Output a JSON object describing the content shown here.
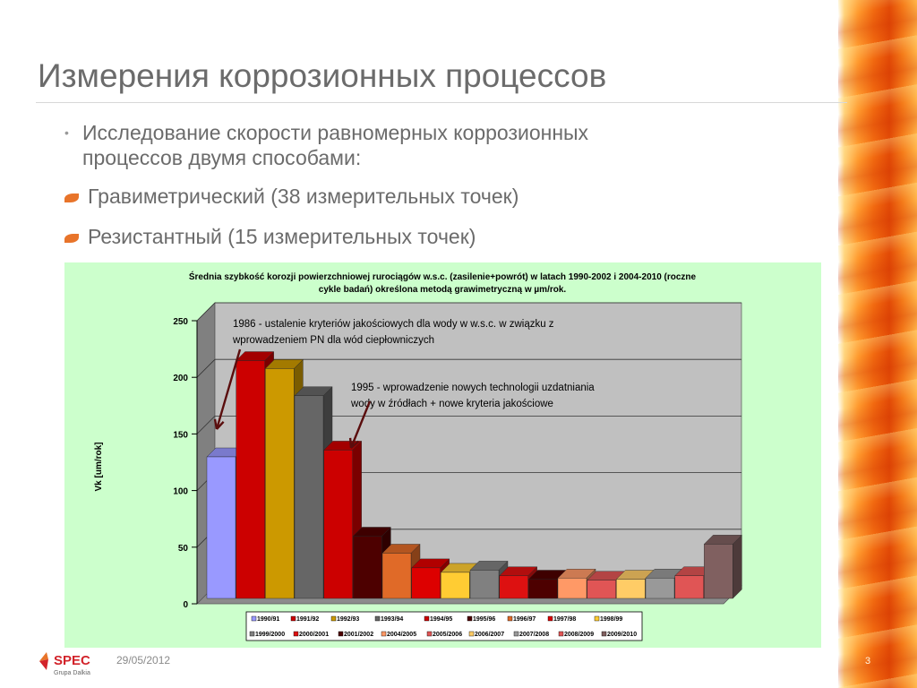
{
  "slide": {
    "title": "Измерения коррозионных процессов",
    "bullet_main": "Исследование скорости равномерных коррозионных процессов двумя способами:",
    "bullet_1": "Гравиметрический (38 измерительных точек)",
    "bullet_2": "Резистантный (15 измерительных точек)",
    "date": "29/05/2012",
    "page_number": "3",
    "logo_text": "SPEC",
    "logo_subtext": "Grupa Dalkia"
  },
  "colors": {
    "text": "#6b6b6b",
    "chart_bg": "#ccffcc",
    "plot_wall": "#c0c0c0",
    "bullet_leaf": "#e8742a"
  },
  "chart_data": {
    "type": "bar",
    "title_line1": "Średnia szybkość korozji powierzchniowej rurociągów w.s.c. (zasilenie+powrót) w latach 1990-2002 i 2004-2010 (roczne",
    "title_line2": "cykle badań) określona metodą grawimetryczną w µm/rok.",
    "ylabel": "Vk [um/rok]",
    "ylim": [
      0,
      250
    ],
    "yticks": [
      "0",
      "50",
      "100",
      "150",
      "200",
      "250"
    ],
    "grid": true,
    "legend_position": "bottom",
    "categories": [
      "1990/91",
      "1991/92",
      "1992/93",
      "1993/94",
      "1994/95",
      "1995/96",
      "1996/97",
      "1997/98",
      "1998/99",
      "1999/2000",
      "2000/2001",
      "2001/2002",
      "2004/2005",
      "2005/2006",
      "2006/2007",
      "2007/2008",
      "2008/2009",
      "2009/2010"
    ],
    "values": [
      125,
      210,
      203,
      179,
      131,
      55,
      40,
      27,
      23,
      25,
      20,
      17,
      18,
      16,
      17,
      18,
      20,
      48
    ],
    "bar_colors": [
      "#9999ff",
      "#cc0000",
      "#cc9900",
      "#666666",
      "#cc0000",
      "#4d0000",
      "#e06a28",
      "#dd0000",
      "#ffcc33",
      "#808080",
      "#dd1111",
      "#4d0000",
      "#ff9966",
      "#e05555",
      "#ffcc66",
      "#999999",
      "#e05555",
      "#806060"
    ],
    "annotations": [
      {
        "text_line1": "1986 - ustalenie kryteriów jakościowych dla wody w w.s.c. w związku z",
        "text_line2": "wprowadzeniem PN dla wód ciepłowniczych"
      },
      {
        "text_line1": "1995 - wprowadzenie nowych technologii uzdatniania",
        "text_line2": "wody w źródłach + nowe kryteria jakościowe"
      }
    ]
  }
}
